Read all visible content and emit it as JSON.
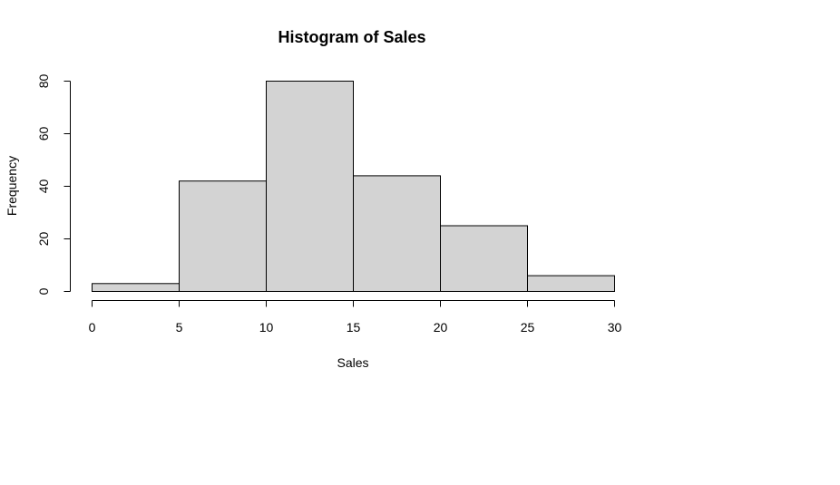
{
  "chart_data": {
    "type": "bar",
    "title": "Histogram of Sales",
    "xlabel": "Sales",
    "ylabel": "Frequency",
    "bins": [
      {
        "x0": 0,
        "x1": 5,
        "count": 3
      },
      {
        "x0": 5,
        "x1": 10,
        "count": 42
      },
      {
        "x0": 10,
        "x1": 15,
        "count": 80
      },
      {
        "x0": 15,
        "x1": 20,
        "count": 44
      },
      {
        "x0": 20,
        "x1": 25,
        "count": 25
      },
      {
        "x0": 25,
        "x1": 30,
        "count": 6
      }
    ],
    "xlim": [
      0,
      30
    ],
    "ylim": [
      0,
      80
    ],
    "x_ticks": [
      0,
      5,
      10,
      15,
      20,
      25,
      30
    ],
    "y_ticks": [
      0,
      20,
      40,
      60,
      80
    ],
    "bar_color": "#d3d3d3",
    "bar_border_color": "#000000",
    "grid": false,
    "legend": "none"
  }
}
